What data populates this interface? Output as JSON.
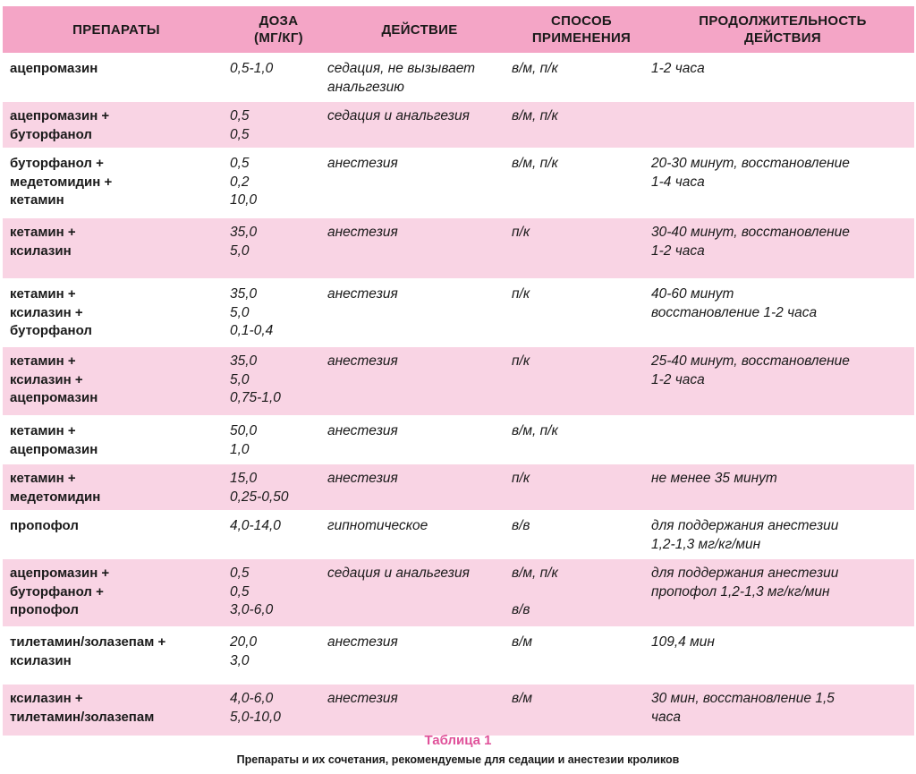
{
  "headers": {
    "drugs": "ПРЕПАРАТЫ",
    "dose_line1": "ДОЗА",
    "dose_line2": "(МГ/КГ)",
    "action": "ДЕЙСТВИЕ",
    "route_line1": "СПОСОБ",
    "route_line2": "ПРИМЕНЕНИЯ",
    "duration_line1": "ПРОДОЛЖИТЕЛЬНОСТЬ",
    "duration_line2": "ДЕЙСТВИЯ"
  },
  "rows": [
    {
      "drugs": [
        "ацепромазин"
      ],
      "doses": [
        "0,5-1,0"
      ],
      "action": [
        "седация, не вызывает",
        "анальгезию"
      ],
      "route": [
        "в/м, п/к"
      ],
      "duration": [
        "1-2 часа"
      ]
    },
    {
      "drugs": [
        "ацепромазин +",
        "буторфанол"
      ],
      "doses": [
        "0,5",
        "0,5"
      ],
      "action": [
        "седация и анальгезия"
      ],
      "route": [
        "в/м, п/к"
      ],
      "duration": []
    },
    {
      "drugs": [
        "буторфанол +",
        "медетомидин +",
        "кетамин"
      ],
      "doses": [
        "0,5",
        "0,2",
        "10,0"
      ],
      "action": [
        "анестезия"
      ],
      "route": [
        "в/м, п/к"
      ],
      "duration": [
        "20-30 минут, восстановление",
        "1-4 часа"
      ]
    },
    {
      "drugs": [
        "кетамин +",
        "ксилазин"
      ],
      "doses": [
        "35,0",
        "5,0"
      ],
      "action": [
        "анестезия"
      ],
      "route": [
        "п/к"
      ],
      "duration": [
        "30-40 минут, восстановление",
        "1-2 часа"
      ]
    },
    {
      "drugs": [
        "кетамин +",
        "ксилазин +",
        "буторфанол"
      ],
      "doses": [
        "35,0",
        "5,0",
        "0,1-0,4"
      ],
      "action": [
        "анестезия"
      ],
      "route": [
        "п/к"
      ],
      "duration": [
        "40-60 минут",
        "восстановление 1-2 часа"
      ]
    },
    {
      "drugs": [
        "кетамин +",
        "ксилазин +",
        "ацепромазин"
      ],
      "doses": [
        "35,0",
        "5,0",
        "0,75-1,0"
      ],
      "action": [
        "анестезия"
      ],
      "route": [
        "п/к"
      ],
      "duration": [
        "25-40 минут, восстановление",
        "1-2 часа"
      ]
    },
    {
      "drugs": [
        "кетамин +",
        "ацепромазин"
      ],
      "doses": [
        "50,0",
        "1,0"
      ],
      "action": [
        "анестезия"
      ],
      "route": [
        "в/м, п/к"
      ],
      "duration": []
    },
    {
      "drugs": [
        "кетамин +",
        "медетомидин"
      ],
      "doses": [
        "15,0",
        "0,25-0,50"
      ],
      "action": [
        "анестезия"
      ],
      "route": [
        "п/к"
      ],
      "duration": [
        "не менее 35 минут"
      ]
    },
    {
      "drugs": [
        "пропофол"
      ],
      "doses": [
        "4,0-14,0"
      ],
      "action": [
        "гипнотическое"
      ],
      "route": [
        "в/в"
      ],
      "duration": [
        "для поддержания анестезии",
        "1,2-1,3 мг/кг/мин"
      ]
    },
    {
      "drugs": [
        "ацепромазин +",
        "буторфанол +",
        "пропофол"
      ],
      "doses": [
        "0,5",
        "0,5",
        "3,0-6,0"
      ],
      "action": [
        "седация и анальгезия"
      ],
      "route": [
        "в/м, п/к",
        "",
        "в/в"
      ],
      "duration": [
        "для поддержания анестезии",
        "пропофол 1,2-1,3 мг/кг/мин"
      ]
    },
    {
      "drugs": [
        "тилетамин/золазепам +",
        "ксилазин"
      ],
      "doses": [
        "20,0",
        "3,0"
      ],
      "action": [
        "анестезия"
      ],
      "route": [
        "в/м"
      ],
      "duration": [
        "109,4 мин"
      ]
    },
    {
      "drugs": [
        "ксилазин +",
        "тилетамин/золазепам"
      ],
      "doses": [
        "4,0-6,0",
        "5,0-10,0"
      ],
      "action": [
        "анестезия"
      ],
      "route": [
        "в/м"
      ],
      "duration": [
        "30 мин, восстановление 1,5",
        "часа"
      ]
    }
  ],
  "caption": {
    "title": "Таблица 1",
    "subtitle": "Препараты и их сочетания, рекомендуемые для седации и анестезии кроликов"
  },
  "colors": {
    "header_bg": "#f4a5c6",
    "row_alt_bg": "#f9d4e4",
    "caption_title": "#e0529a"
  }
}
